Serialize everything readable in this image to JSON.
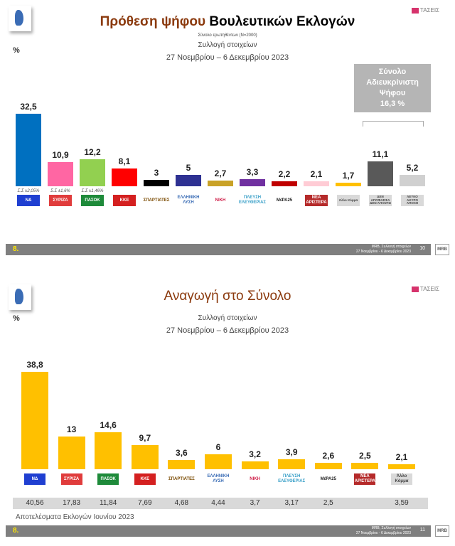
{
  "chart_data": [
    {
      "type": "bar",
      "title": "Πρόθεση ψήφου Βουλευτικών Εκλογών",
      "title_accent": "Πρόθεση ψήφου",
      "title_rest": "Βουλευτικών Εκλογών",
      "subtitle": "Σύνολο ερωτηθέντων (N=2000)",
      "subtitle2": "Συλλογή στοιχείων",
      "subtitle3": "27 Νοεμβρίου – 6 Δεκεμβρίου  2023",
      "ylabel": "%",
      "categories": [
        "ΝΔ",
        "ΣΥΡΙΖΑ",
        "ΠΑΣΟΚ",
        "ΚΚΕ",
        "ΣΠΑΡΤΙΑΤΕΣ",
        "ΕΛΛΗΝΙΚΗ ΛΥΣΗ",
        "ΝΙΚΗ",
        "ΠΛΕΥΣΗ ΕΛΕΥΘΕΡΙΑΣ",
        "ΜέΡΑ25",
        "ΝΕΑ ΑΡΙΣΤΕΡΑ",
        "Άλλο Κόμμα",
        "ΔΕΝ ΑΠΟΦΑΣΙΣΑ ΔΕΝ ΑΠΑΝΤΩ",
        "ΛΕΥΚΟ ΑΚΥΡΟ ΑΠΟΧΗ"
      ],
      "values": [
        32.5,
        10.9,
        12.2,
        8.1,
        3,
        5,
        2.7,
        3.3,
        2.2,
        2.1,
        1.7,
        11.1,
        5.2
      ],
      "labels": [
        "32,5",
        "10,9",
        "12,2",
        "8,1",
        "3",
        "5",
        "2,7",
        "3,3",
        "2,2",
        "2,1",
        "1,7",
        "11,1",
        "5,2"
      ],
      "colors": [
        "#0070c0",
        "#ff66a3",
        "#92d050",
        "#ff0000",
        "#000000",
        "#2e3192",
        "#c9a227",
        "#7030a0",
        "#c00000",
        "#ffccd5",
        "#ffc000",
        "#595959",
        "#d0d0d0"
      ],
      "margins": [
        "Σ.Σ ±2,05%",
        "Σ.Σ ±1,6%",
        "Σ.Σ ±1,46%"
      ],
      "annotation": {
        "line1": "Σύνολο",
        "line2": "Αδιευκρίνιστη",
        "line3": "Ψήφου",
        "line4": "16,3 %"
      },
      "ylim": [
        0,
        35
      ]
    },
    {
      "type": "bar",
      "title": "Αναγωγή στο Σύνολο",
      "subtitle2": "Συλλογή στοιχείων",
      "subtitle3": "27 Νοεμβρίου – 6 Δεκεμβρίου  2023",
      "ylabel": "%",
      "categories": [
        "ΝΔ",
        "ΣΥΡΙΖΑ",
        "ΠΑΣΟΚ",
        "ΚΚΕ",
        "ΣΠΑΡΤΙΑΤΕΣ",
        "ΕΛΛΗΝΙΚΗ ΛΥΣΗ",
        "ΝΙΚΗ",
        "ΠΛΕΥΣΗ ΕΛΕΥΘΕΡΙΑΣ",
        "ΜέΡΑ25",
        "ΝΕΑ ΑΡΙΣΤΕΡΑ",
        "Άλλο Κόμμα"
      ],
      "values": [
        38.8,
        13,
        14.6,
        9.7,
        3.6,
        6,
        3.2,
        3.9,
        2.6,
        2.5,
        2.1
      ],
      "labels": [
        "38,8",
        "13",
        "14,6",
        "9,7",
        "3,6",
        "6",
        "3,2",
        "3,9",
        "2,6",
        "2,5",
        "2,1"
      ],
      "color": "#ffc000",
      "previous_results_label": "Αποτελέσματα Εκλογών Ιουνίου 2023",
      "previous_results": [
        "40,56",
        "17,83",
        "11,84",
        "7,69",
        "4,68",
        "4,44",
        "3,7",
        "3,17",
        "2,5",
        "",
        "3,59"
      ],
      "ylim": [
        0,
        40
      ]
    }
  ],
  "logos": {
    "colors": [
      "#1f3fd1",
      "#e03c3c",
      "#1e8a3a",
      "#d42020",
      "#ffffff",
      "#ffffff",
      "#ffffff",
      "#ffffff",
      "#ffffff",
      "#b52a2a",
      "#d9d9d9",
      "#d9d9d9",
      "#d9d9d9"
    ],
    "text_colors": [
      "#fff",
      "#fff",
      "#fff",
      "#fff",
      "#7a4a00",
      "#3a6cb5",
      "#d0204a",
      "#3aa0c8",
      "#222",
      "#fff",
      "#444",
      "#444",
      "#444"
    ]
  },
  "brand": "ΤΑΣΕΙΣ",
  "footer": [
    {
      "section": "8.",
      "line1": "MRB, Συλλογή στοιχείων",
      "line2": "27 Νοεμβρίου - 6 Δεκεμβρίου 2023",
      "page": "10",
      "logo": "MRB"
    },
    {
      "section": "8.",
      "line1": "MRB, Συλλογή στοιχείων",
      "line2": "27 Νοεμβρίου - 6 Δεκεμβρίου 2023",
      "page": "11",
      "logo": "MRB"
    }
  ]
}
